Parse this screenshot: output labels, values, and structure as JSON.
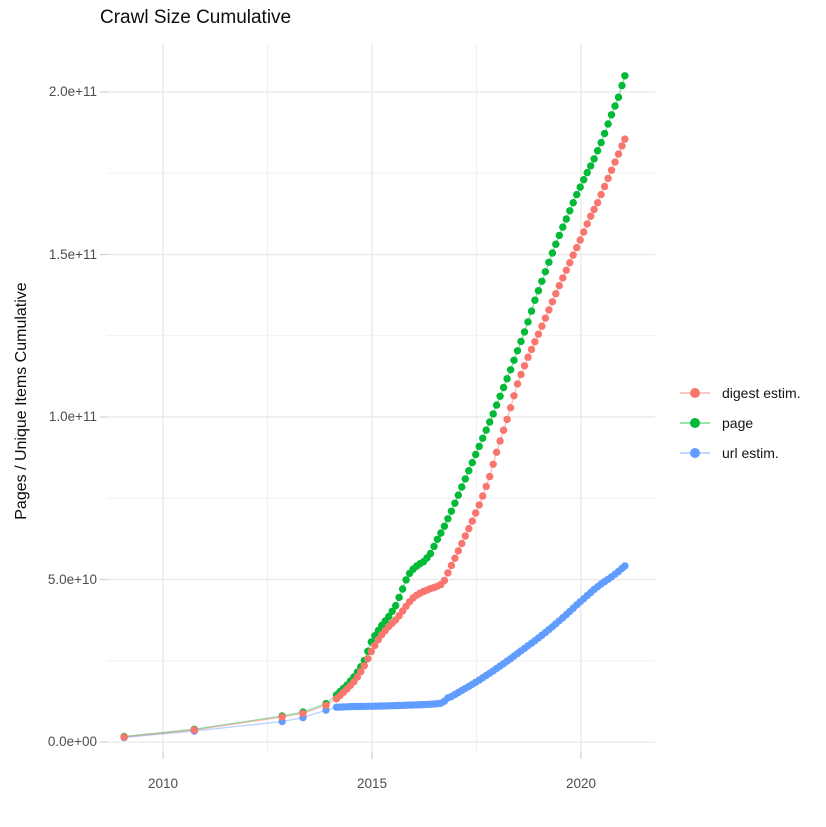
{
  "chart_data": {
    "type": "scatter",
    "title": "Crawl Size Cumulative",
    "xlabel": "",
    "ylabel": "Pages / Unique Items Cumulative",
    "grid": true,
    "legend_position": "right",
    "x_domain": [
      2008.65,
      2021.8
    ],
    "y_domain_e9": [
      -3,
      215
    ],
    "x_ticks": [
      {
        "label": "2010",
        "year": 2010
      },
      {
        "label": "2015",
        "year": 2015
      },
      {
        "label": "2020",
        "year": 2020
      }
    ],
    "x_minor_years": [
      2012.5,
      2017.5
    ],
    "y_ticks": [
      {
        "label": "0.0e+00",
        "value_e9": 0
      },
      {
        "label": "5.0e+10",
        "value_e9": 50
      },
      {
        "label": "1.0e+11",
        "value_e9": 100
      },
      {
        "label": "1.5e+11",
        "value_e9": 150
      },
      {
        "label": "2.0e+11",
        "value_e9": 200
      }
    ],
    "y_minor_e9": [
      25,
      75,
      125,
      175
    ],
    "point_cadence_years": 0.0833,
    "series": [
      {
        "name": "digest-estim",
        "legend_label": "digest estim.",
        "color": "#F8766D",
        "draw_order": 3,
        "early_points": [
          [
            2009.07,
            1.55
          ],
          [
            2010.75,
            3.7
          ],
          [
            2012.85,
            7.7
          ],
          [
            2013.35,
            8.8
          ],
          [
            2013.9,
            11.3
          ]
        ],
        "anchors_e9": [
          [
            2014.15,
            13.3
          ],
          [
            2014.4,
            16.3
          ],
          [
            2014.6,
            19.0
          ],
          [
            2014.8,
            23.0
          ],
          [
            2015.0,
            28.3
          ],
          [
            2015.2,
            32.5
          ],
          [
            2015.4,
            35.5
          ],
          [
            2015.6,
            38.0
          ],
          [
            2015.8,
            41.5
          ],
          [
            2015.95,
            44.0
          ],
          [
            2016.1,
            45.5
          ],
          [
            2016.25,
            46.4
          ],
          [
            2016.4,
            47.2
          ],
          [
            2016.55,
            47.8
          ],
          [
            2016.7,
            48.8
          ],
          [
            2016.85,
            53.0
          ],
          [
            2017.0,
            57.0
          ],
          [
            2017.2,
            62.5
          ],
          [
            2017.4,
            68.0
          ],
          [
            2017.6,
            74.0
          ],
          [
            2017.8,
            81.0
          ],
          [
            2018.0,
            90.0
          ],
          [
            2018.25,
            100.0
          ],
          [
            2018.5,
            111.0
          ],
          [
            2018.75,
            119.0
          ],
          [
            2019.0,
            126.0
          ],
          [
            2019.2,
            132.0
          ],
          [
            2019.5,
            141.0
          ],
          [
            2019.75,
            148.0
          ],
          [
            2020.0,
            155.0
          ],
          [
            2020.2,
            161.0
          ],
          [
            2020.4,
            166.0
          ],
          [
            2020.6,
            172.0
          ],
          [
            2020.8,
            178.0
          ],
          [
            2021.05,
            185.5
          ]
        ]
      },
      {
        "name": "page",
        "legend_label": "page",
        "color": "#00BA38",
        "draw_order": 1,
        "early_points": [
          [
            2009.07,
            1.7
          ],
          [
            2010.75,
            3.9
          ],
          [
            2012.85,
            8.0
          ],
          [
            2013.35,
            9.2
          ],
          [
            2013.9,
            11.8
          ]
        ],
        "anchors_e9": [
          [
            2014.15,
            14.5
          ],
          [
            2014.4,
            17.5
          ],
          [
            2014.6,
            20.5
          ],
          [
            2014.8,
            24.5
          ],
          [
            2015.0,
            31.4
          ],
          [
            2015.2,
            35.3
          ],
          [
            2015.4,
            38.6
          ],
          [
            2015.55,
            41.5
          ],
          [
            2015.7,
            46.0
          ],
          [
            2015.85,
            51.0
          ],
          [
            2015.95,
            52.8
          ],
          [
            2016.1,
            54.5
          ],
          [
            2016.25,
            55.6
          ],
          [
            2016.4,
            58.0
          ],
          [
            2016.55,
            62.0
          ],
          [
            2016.7,
            65.5
          ],
          [
            2016.9,
            71.0
          ],
          [
            2017.1,
            77.0
          ],
          [
            2017.3,
            83.0
          ],
          [
            2017.5,
            89.0
          ],
          [
            2017.7,
            95.0
          ],
          [
            2017.9,
            101.0
          ],
          [
            2018.1,
            107.5
          ],
          [
            2018.3,
            114.0
          ],
          [
            2018.5,
            121.0
          ],
          [
            2018.7,
            128.0
          ],
          [
            2018.9,
            136.0
          ],
          [
            2019.1,
            143.0
          ],
          [
            2019.3,
            150.0
          ],
          [
            2019.5,
            156.5
          ],
          [
            2019.7,
            162.5
          ],
          [
            2019.9,
            168.5
          ],
          [
            2020.1,
            174.0
          ],
          [
            2020.3,
            179.0
          ],
          [
            2020.5,
            185.0
          ],
          [
            2020.7,
            192.0
          ],
          [
            2020.9,
            198.5
          ],
          [
            2021.05,
            205.0
          ]
        ]
      },
      {
        "name": "url-estim",
        "legend_label": "url estim.",
        "color": "#619CFF",
        "draw_order": 2,
        "early_points": [
          [
            2009.07,
            1.4
          ],
          [
            2010.75,
            3.4
          ],
          [
            2012.85,
            6.3
          ],
          [
            2013.35,
            7.5
          ],
          [
            2013.9,
            9.8
          ]
        ],
        "anchors_e9": [
          [
            2014.15,
            10.7
          ],
          [
            2014.5,
            10.9
          ],
          [
            2015.0,
            11.0
          ],
          [
            2015.3,
            11.1
          ],
          [
            2015.6,
            11.2
          ],
          [
            2015.9,
            11.35
          ],
          [
            2016.2,
            11.5
          ],
          [
            2016.5,
            11.7
          ],
          [
            2016.7,
            12.0
          ],
          [
            2016.78,
            13.4
          ],
          [
            2016.9,
            14.0
          ],
          [
            2017.1,
            15.5
          ],
          [
            2017.3,
            17.0
          ],
          [
            2017.5,
            18.5
          ],
          [
            2017.7,
            20.2
          ],
          [
            2017.9,
            21.9
          ],
          [
            2018.1,
            23.7
          ],
          [
            2018.3,
            25.5
          ],
          [
            2018.5,
            27.4
          ],
          [
            2018.7,
            29.3
          ],
          [
            2018.9,
            31.2
          ],
          [
            2019.1,
            33.2
          ],
          [
            2019.3,
            35.3
          ],
          [
            2019.5,
            37.5
          ],
          [
            2019.7,
            39.8
          ],
          [
            2019.9,
            42.2
          ],
          [
            2020.1,
            44.5
          ],
          [
            2020.3,
            46.8
          ],
          [
            2020.5,
            48.8
          ],
          [
            2020.7,
            50.5
          ],
          [
            2020.9,
            52.5
          ],
          [
            2021.05,
            54.2
          ]
        ]
      }
    ]
  }
}
